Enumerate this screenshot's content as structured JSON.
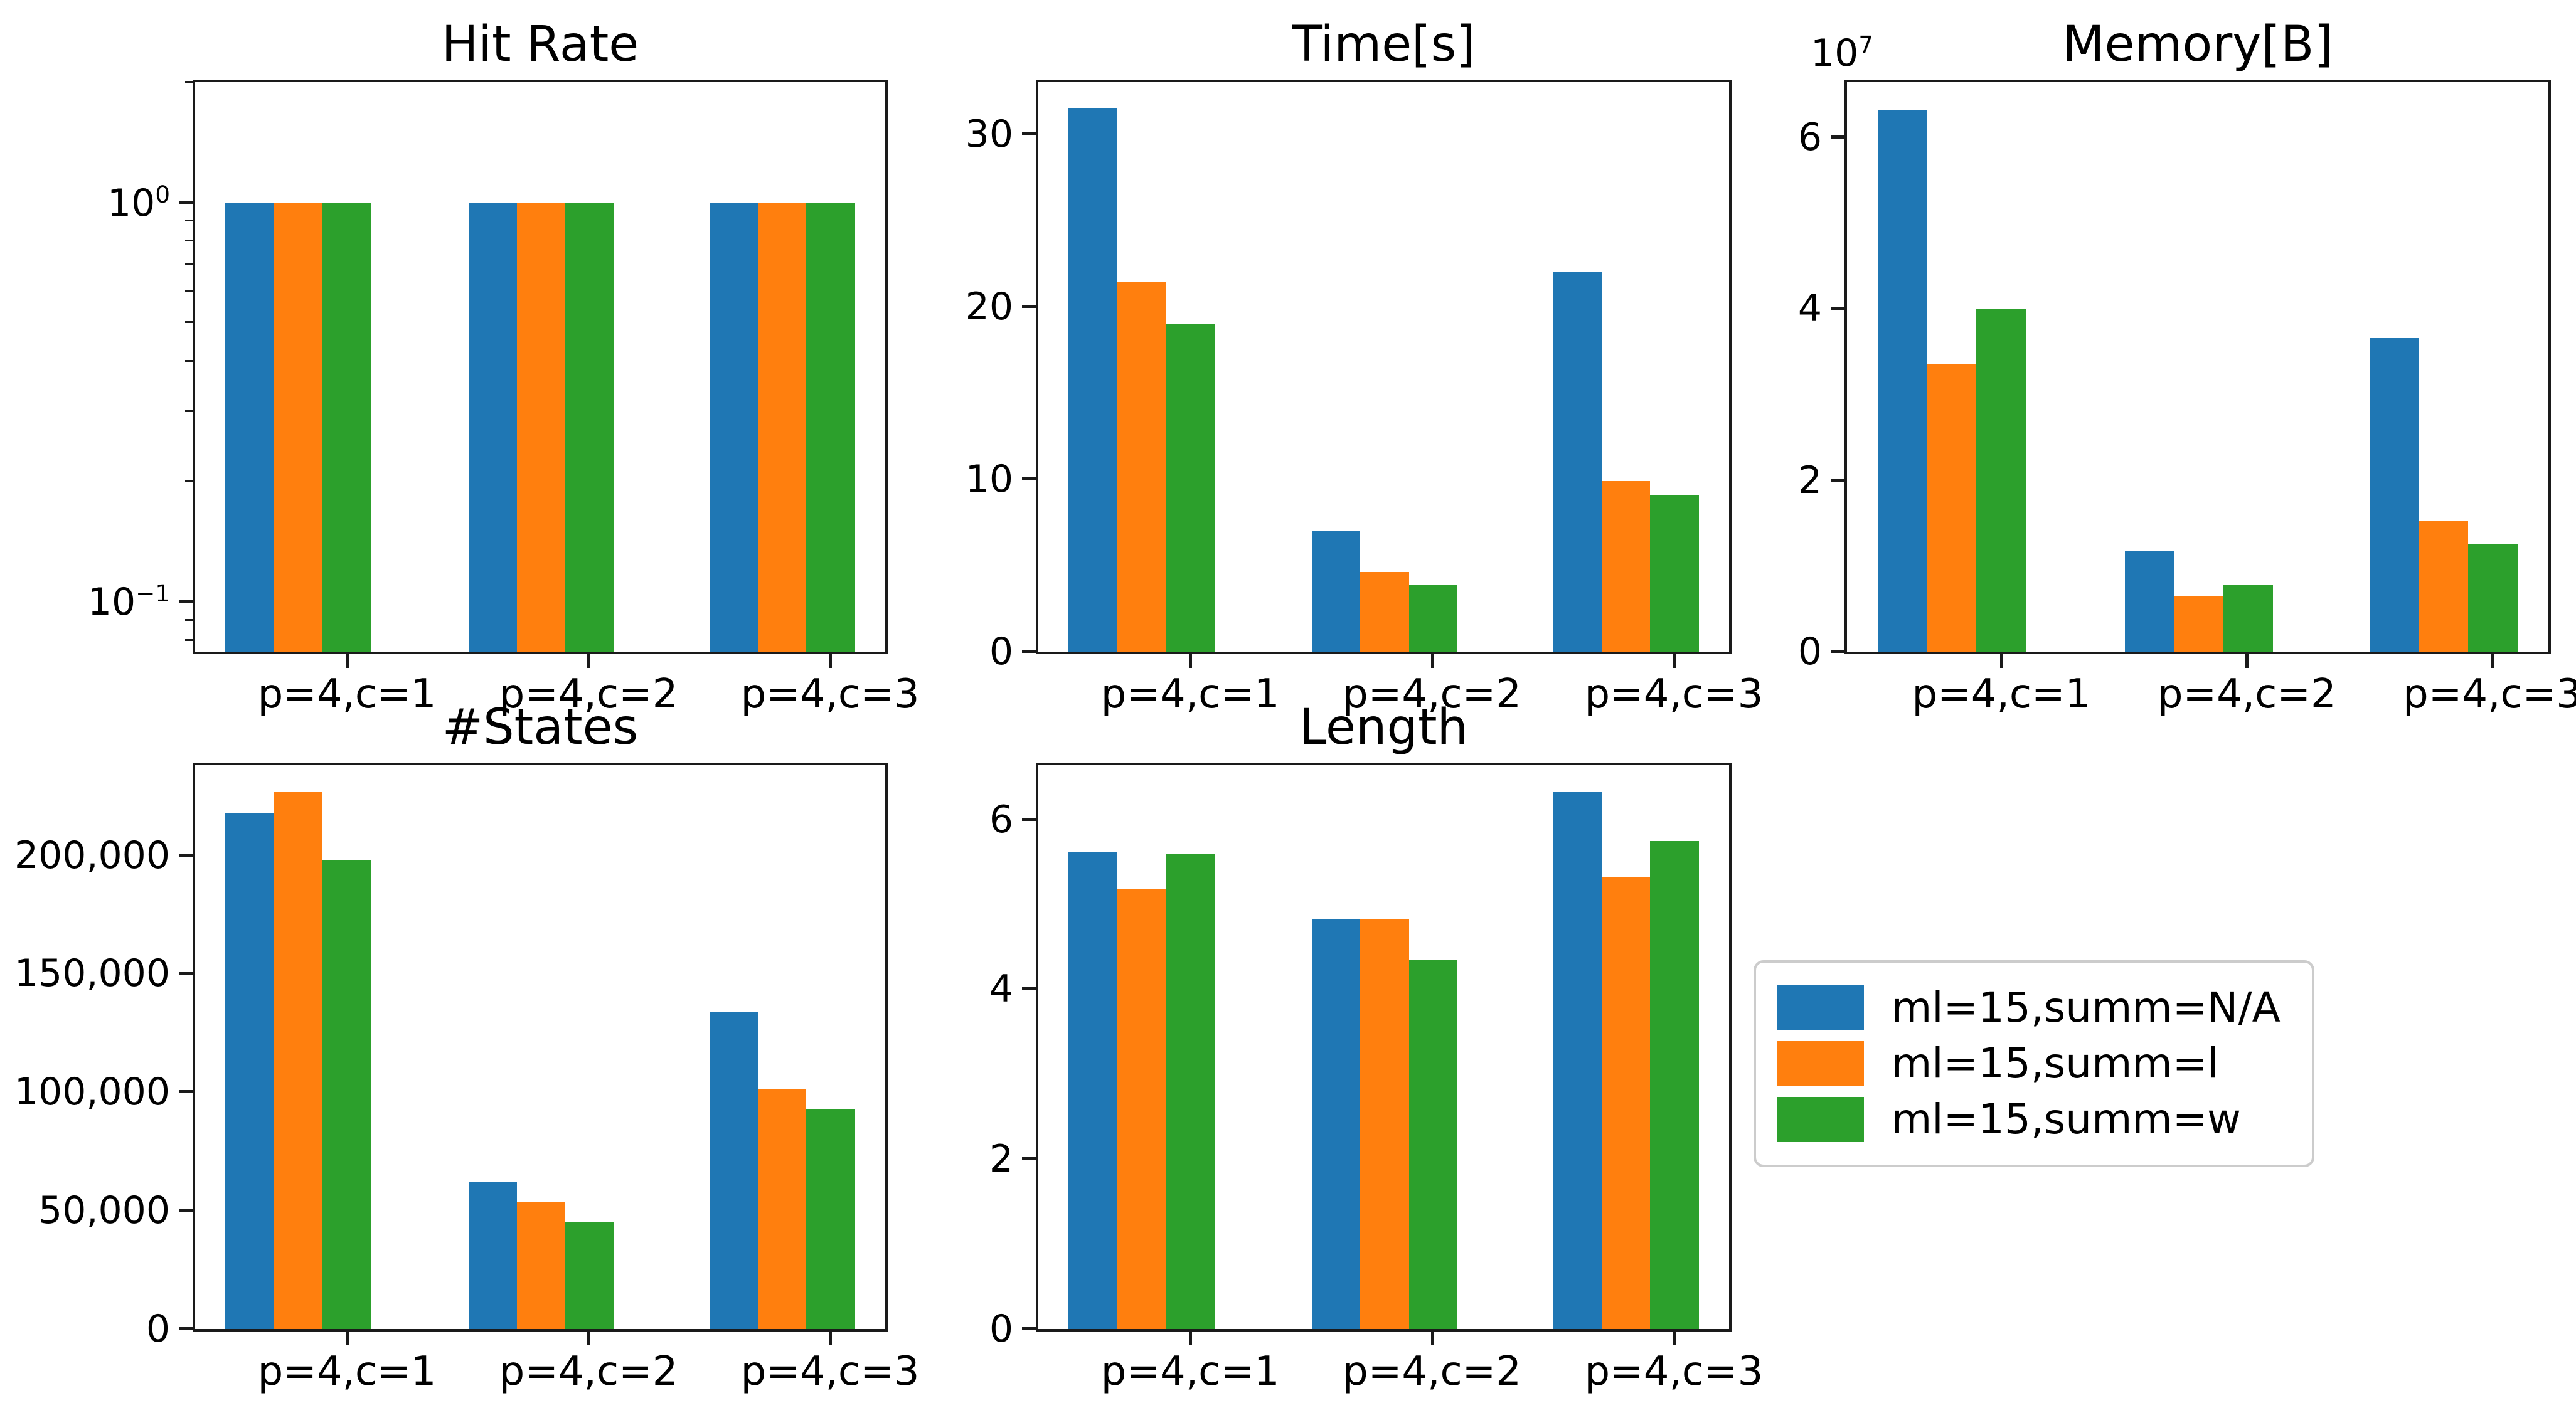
{
  "figure": {
    "background": "#ffffff",
    "spine_color": "#1a1a1a",
    "text_color": "#000000"
  },
  "colors": {
    "blue": "#1f77b4",
    "orange": "#ff7f0e",
    "green": "#2ca02c"
  },
  "legend": {
    "entries": [
      {
        "label": "ml=15,summ=N/A",
        "color": "blue"
      },
      {
        "label": "ml=15,summ=l",
        "color": "orange"
      },
      {
        "label": "ml=15,summ=w",
        "color": "green"
      }
    ]
  },
  "chart_data": {
    "type": "bar",
    "categories": [
      "p=4,c=1",
      "p=4,c=2",
      "p=4,c=3"
    ],
    "series_names": [
      "ml=15,summ=N/A",
      "ml=15,summ=l",
      "ml=15,summ=w"
    ],
    "charts": [
      {
        "id": "hit_rate",
        "title": "Hit Rate",
        "scale": "log",
        "ylim": [
          0.075,
          2.0
        ],
        "yticks": [
          {
            "v": 1,
            "base": "10",
            "exp": "0"
          },
          {
            "v": 0.1,
            "base": "10",
            "exp": "−1"
          }
        ],
        "minor_ticks": [
          2,
          0.9,
          0.8,
          0.7,
          0.6,
          0.5,
          0.4,
          0.3,
          0.2,
          0.09,
          0.08
        ],
        "series": [
          {
            "name": "ml=15,summ=N/A",
            "color": "blue",
            "values": [
              1.0,
              1.0,
              1.0
            ]
          },
          {
            "name": "ml=15,summ=l",
            "color": "orange",
            "values": [
              1.0,
              1.0,
              1.0
            ]
          },
          {
            "name": "ml=15,summ=w",
            "color": "green",
            "values": [
              1.0,
              1.0,
              1.0
            ]
          }
        ]
      },
      {
        "id": "time",
        "title": "Time[s]",
        "scale": "linear",
        "ylim": [
          0,
          33
        ],
        "yticks": [
          {
            "v": 0,
            "label": "0"
          },
          {
            "v": 10,
            "label": "10"
          },
          {
            "v": 20,
            "label": "20"
          },
          {
            "v": 30,
            "label": "30"
          }
        ],
        "series": [
          {
            "name": "ml=15,summ=N/A",
            "color": "blue",
            "values": [
              31.5,
              7.0,
              22.0
            ]
          },
          {
            "name": "ml=15,summ=l",
            "color": "orange",
            "values": [
              21.4,
              4.6,
              9.9
            ]
          },
          {
            "name": "ml=15,summ=w",
            "color": "green",
            "values": [
              19.0,
              3.9,
              9.1
            ]
          }
        ]
      },
      {
        "id": "memory",
        "title": "Memory[B]",
        "scale": "linear",
        "ylim": [
          0,
          66400000
        ],
        "offset": {
          "base": "10",
          "exp": "7"
        },
        "yticks": [
          {
            "v": 0,
            "label": "0"
          },
          {
            "v": 20000000,
            "label": "2"
          },
          {
            "v": 40000000,
            "label": "4"
          },
          {
            "v": 60000000,
            "label": "6"
          }
        ],
        "series": [
          {
            "name": "ml=15,summ=N/A",
            "color": "blue",
            "values": [
              63200000,
              11800000,
              36600000
            ]
          },
          {
            "name": "ml=15,summ=l",
            "color": "orange",
            "values": [
              33500000,
              6500000,
              15300000
            ]
          },
          {
            "name": "ml=15,summ=w",
            "color": "green",
            "values": [
              40000000,
              7800000,
              12600000
            ]
          }
        ]
      },
      {
        "id": "states",
        "title": "#States",
        "scale": "linear",
        "ylim": [
          0,
          238000
        ],
        "yticks": [
          {
            "v": 0,
            "label": "0"
          },
          {
            "v": 50000,
            "label": "50,000"
          },
          {
            "v": 100000,
            "label": "100,000"
          },
          {
            "v": 150000,
            "label": "150,000"
          },
          {
            "v": 200000,
            "label": "200,000"
          }
        ],
        "series": [
          {
            "name": "ml=15,summ=N/A",
            "color": "blue",
            "values": [
              218000,
              62000,
              134000
            ]
          },
          {
            "name": "ml=15,summ=l",
            "color": "orange",
            "values": [
              227000,
              53500,
              101500
            ]
          },
          {
            "name": "ml=15,summ=w",
            "color": "green",
            "values": [
              198000,
              45000,
              93000
            ]
          }
        ]
      },
      {
        "id": "length",
        "title": "Length",
        "scale": "linear",
        "ylim": [
          0,
          6.64
        ],
        "yticks": [
          {
            "v": 0,
            "label": "0"
          },
          {
            "v": 2,
            "label": "2"
          },
          {
            "v": 4,
            "label": "4"
          },
          {
            "v": 6,
            "label": "6"
          }
        ],
        "series": [
          {
            "name": "ml=15,summ=N/A",
            "color": "blue",
            "values": [
              5.62,
              4.83,
              6.32
            ]
          },
          {
            "name": "ml=15,summ=l",
            "color": "orange",
            "values": [
              5.18,
              4.83,
              5.32
            ]
          },
          {
            "name": "ml=15,summ=w",
            "color": "green",
            "values": [
              5.6,
              4.35,
              5.75
            ]
          }
        ]
      }
    ]
  }
}
